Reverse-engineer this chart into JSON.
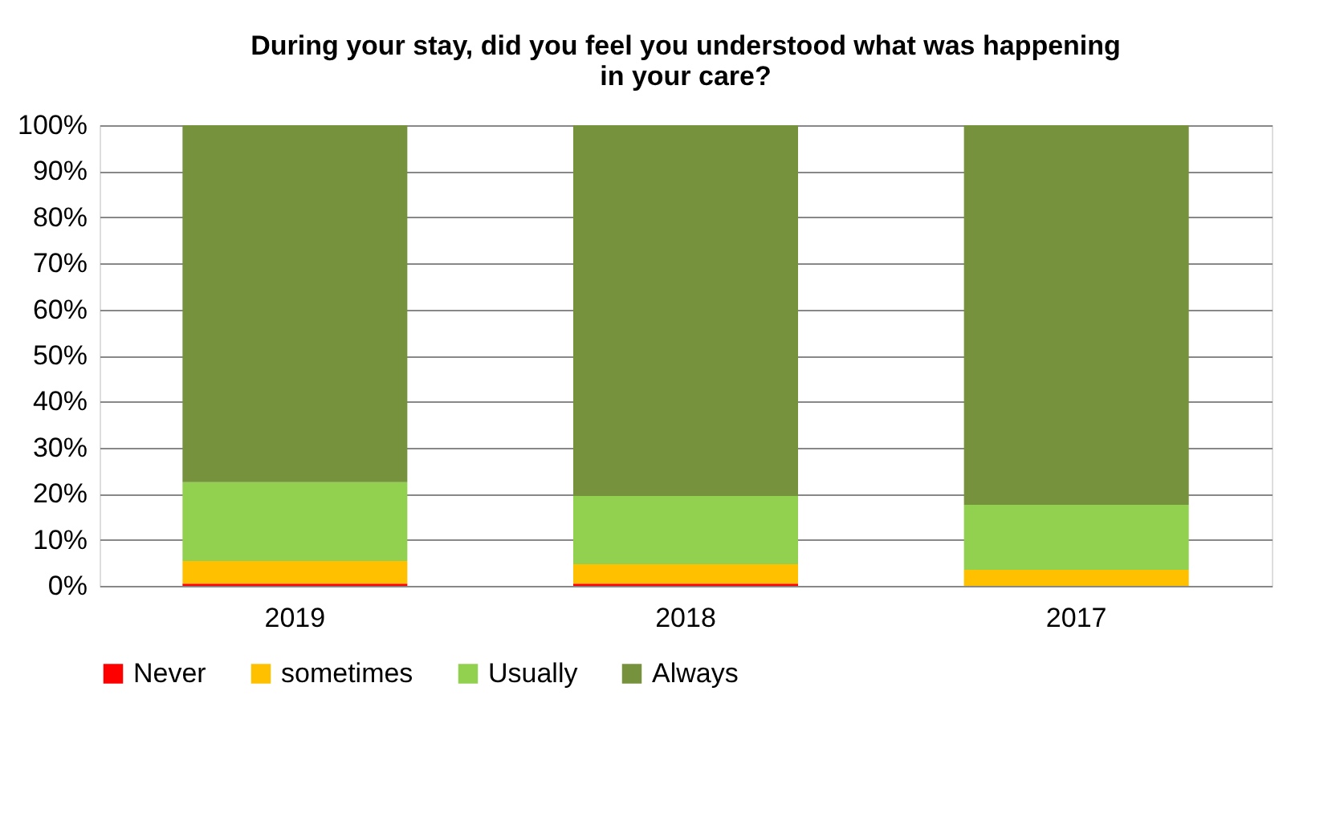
{
  "chart_data": {
    "type": "bar",
    "stacked": true,
    "title": [
      "During your stay, did you feel you understood what was happening",
      "in your care?"
    ],
    "categories": [
      "2019",
      "2018",
      "2017"
    ],
    "series": [
      {
        "name": "Never",
        "color": "#ff0000",
        "values": [
          0.5,
          0.5,
          0
        ]
      },
      {
        "name": "sometimes",
        "color": "#ffc000",
        "values": [
          4.9,
          4.2,
          3.5
        ]
      },
      {
        "name": "Usually",
        "color": "#92d050",
        "values": [
          17.1,
          14.8,
          14.1
        ]
      },
      {
        "name": "Always",
        "color": "#76923c",
        "values": [
          77.5,
          80.5,
          82.4
        ]
      }
    ],
    "ylim": [
      0,
      100
    ],
    "yticks": [
      {
        "value": 0,
        "label": "0%"
      },
      {
        "value": 10,
        "label": "10%"
      },
      {
        "value": 20,
        "label": "20%"
      },
      {
        "value": 30,
        "label": "30%"
      },
      {
        "value": 40,
        "label": "40%"
      },
      {
        "value": 50,
        "label": "50%"
      },
      {
        "value": 60,
        "label": "60%"
      },
      {
        "value": 70,
        "label": "70%"
      },
      {
        "value": 80,
        "label": "80%"
      },
      {
        "value": 90,
        "label": "90%"
      },
      {
        "value": 100,
        "label": "100%"
      }
    ],
    "grid": "y",
    "legend": "bottom"
  }
}
